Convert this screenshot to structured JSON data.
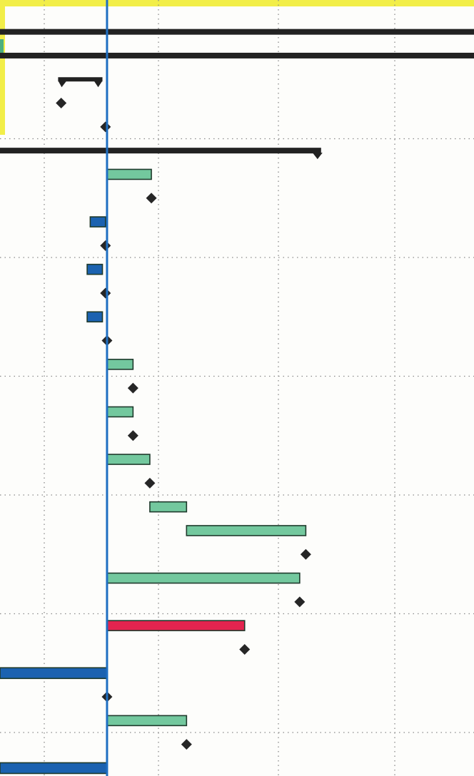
{
  "colors": {
    "header_band": "#f2ee48",
    "left_tab": "#4caf80",
    "task_green": "#73c89e",
    "task_blue": "#1b62b0",
    "task_red": "#e3244f",
    "summary": "#222222",
    "milestone": "#262626",
    "today_line": "#1f6fc2",
    "grid": "#8a8a8a"
  },
  "chart_data": {
    "type": "gantt",
    "title": "",
    "xlabel": "",
    "ylabel": "",
    "x_range": [
      -2.5,
      13.0
    ],
    "status_line_x": 1.0,
    "grid": true,
    "rows": [
      {
        "kind": "summary_line",
        "start": -2.5,
        "end": 13.0
      },
      {
        "kind": "summary_line",
        "start": -2.5,
        "end": 13.0
      },
      {
        "kind": "summary_bracket",
        "start": -0.6,
        "end": 0.85
      },
      {
        "kind": "milestone",
        "at": -0.5
      },
      {
        "kind": "milestone",
        "at": 0.95
      },
      {
        "kind": "summary_line",
        "start": -2.5,
        "end": 8.0
      },
      {
        "kind": "task",
        "start": 1.0,
        "end": 2.45,
        "color": "green"
      },
      {
        "kind": "milestone",
        "at": 2.45
      },
      {
        "kind": "task",
        "start": 0.45,
        "end": 0.95,
        "color": "blue"
      },
      {
        "kind": "milestone",
        "at": 0.95
      },
      {
        "kind": "task",
        "start": 0.35,
        "end": 0.85,
        "color": "blue"
      },
      {
        "kind": "milestone",
        "at": 0.95
      },
      {
        "kind": "task",
        "start": 0.35,
        "end": 0.85,
        "color": "blue"
      },
      {
        "kind": "milestone",
        "at": 1.0
      },
      {
        "kind": "task",
        "start": 1.0,
        "end": 1.85,
        "color": "green"
      },
      {
        "kind": "milestone",
        "at": 1.85
      },
      {
        "kind": "task",
        "start": 1.0,
        "end": 1.85,
        "color": "green"
      },
      {
        "kind": "milestone",
        "at": 1.85
      },
      {
        "kind": "task",
        "start": 1.0,
        "end": 2.4,
        "color": "green"
      },
      {
        "kind": "milestone",
        "at": 2.4
      },
      {
        "kind": "task",
        "start": 2.4,
        "end": 3.6,
        "color": "green"
      },
      {
        "kind": "task",
        "start": 3.6,
        "end": 7.5,
        "color": "green"
      },
      {
        "kind": "milestone",
        "at": 7.5
      },
      {
        "kind": "task",
        "start": 1.0,
        "end": 7.3,
        "color": "green"
      },
      {
        "kind": "milestone",
        "at": 7.3
      },
      {
        "kind": "task",
        "start": 1.0,
        "end": 5.5,
        "color": "red"
      },
      {
        "kind": "milestone",
        "at": 5.5
      },
      {
        "kind": "task",
        "start": -2.5,
        "end": 1.0,
        "color": "blue_thick"
      },
      {
        "kind": "milestone",
        "at": 1.0
      },
      {
        "kind": "task",
        "start": 1.0,
        "end": 3.6,
        "color": "green"
      },
      {
        "kind": "milestone",
        "at": 3.6
      },
      {
        "kind": "task",
        "start": -2.5,
        "end": 1.0,
        "color": "blue_thick"
      }
    ]
  }
}
